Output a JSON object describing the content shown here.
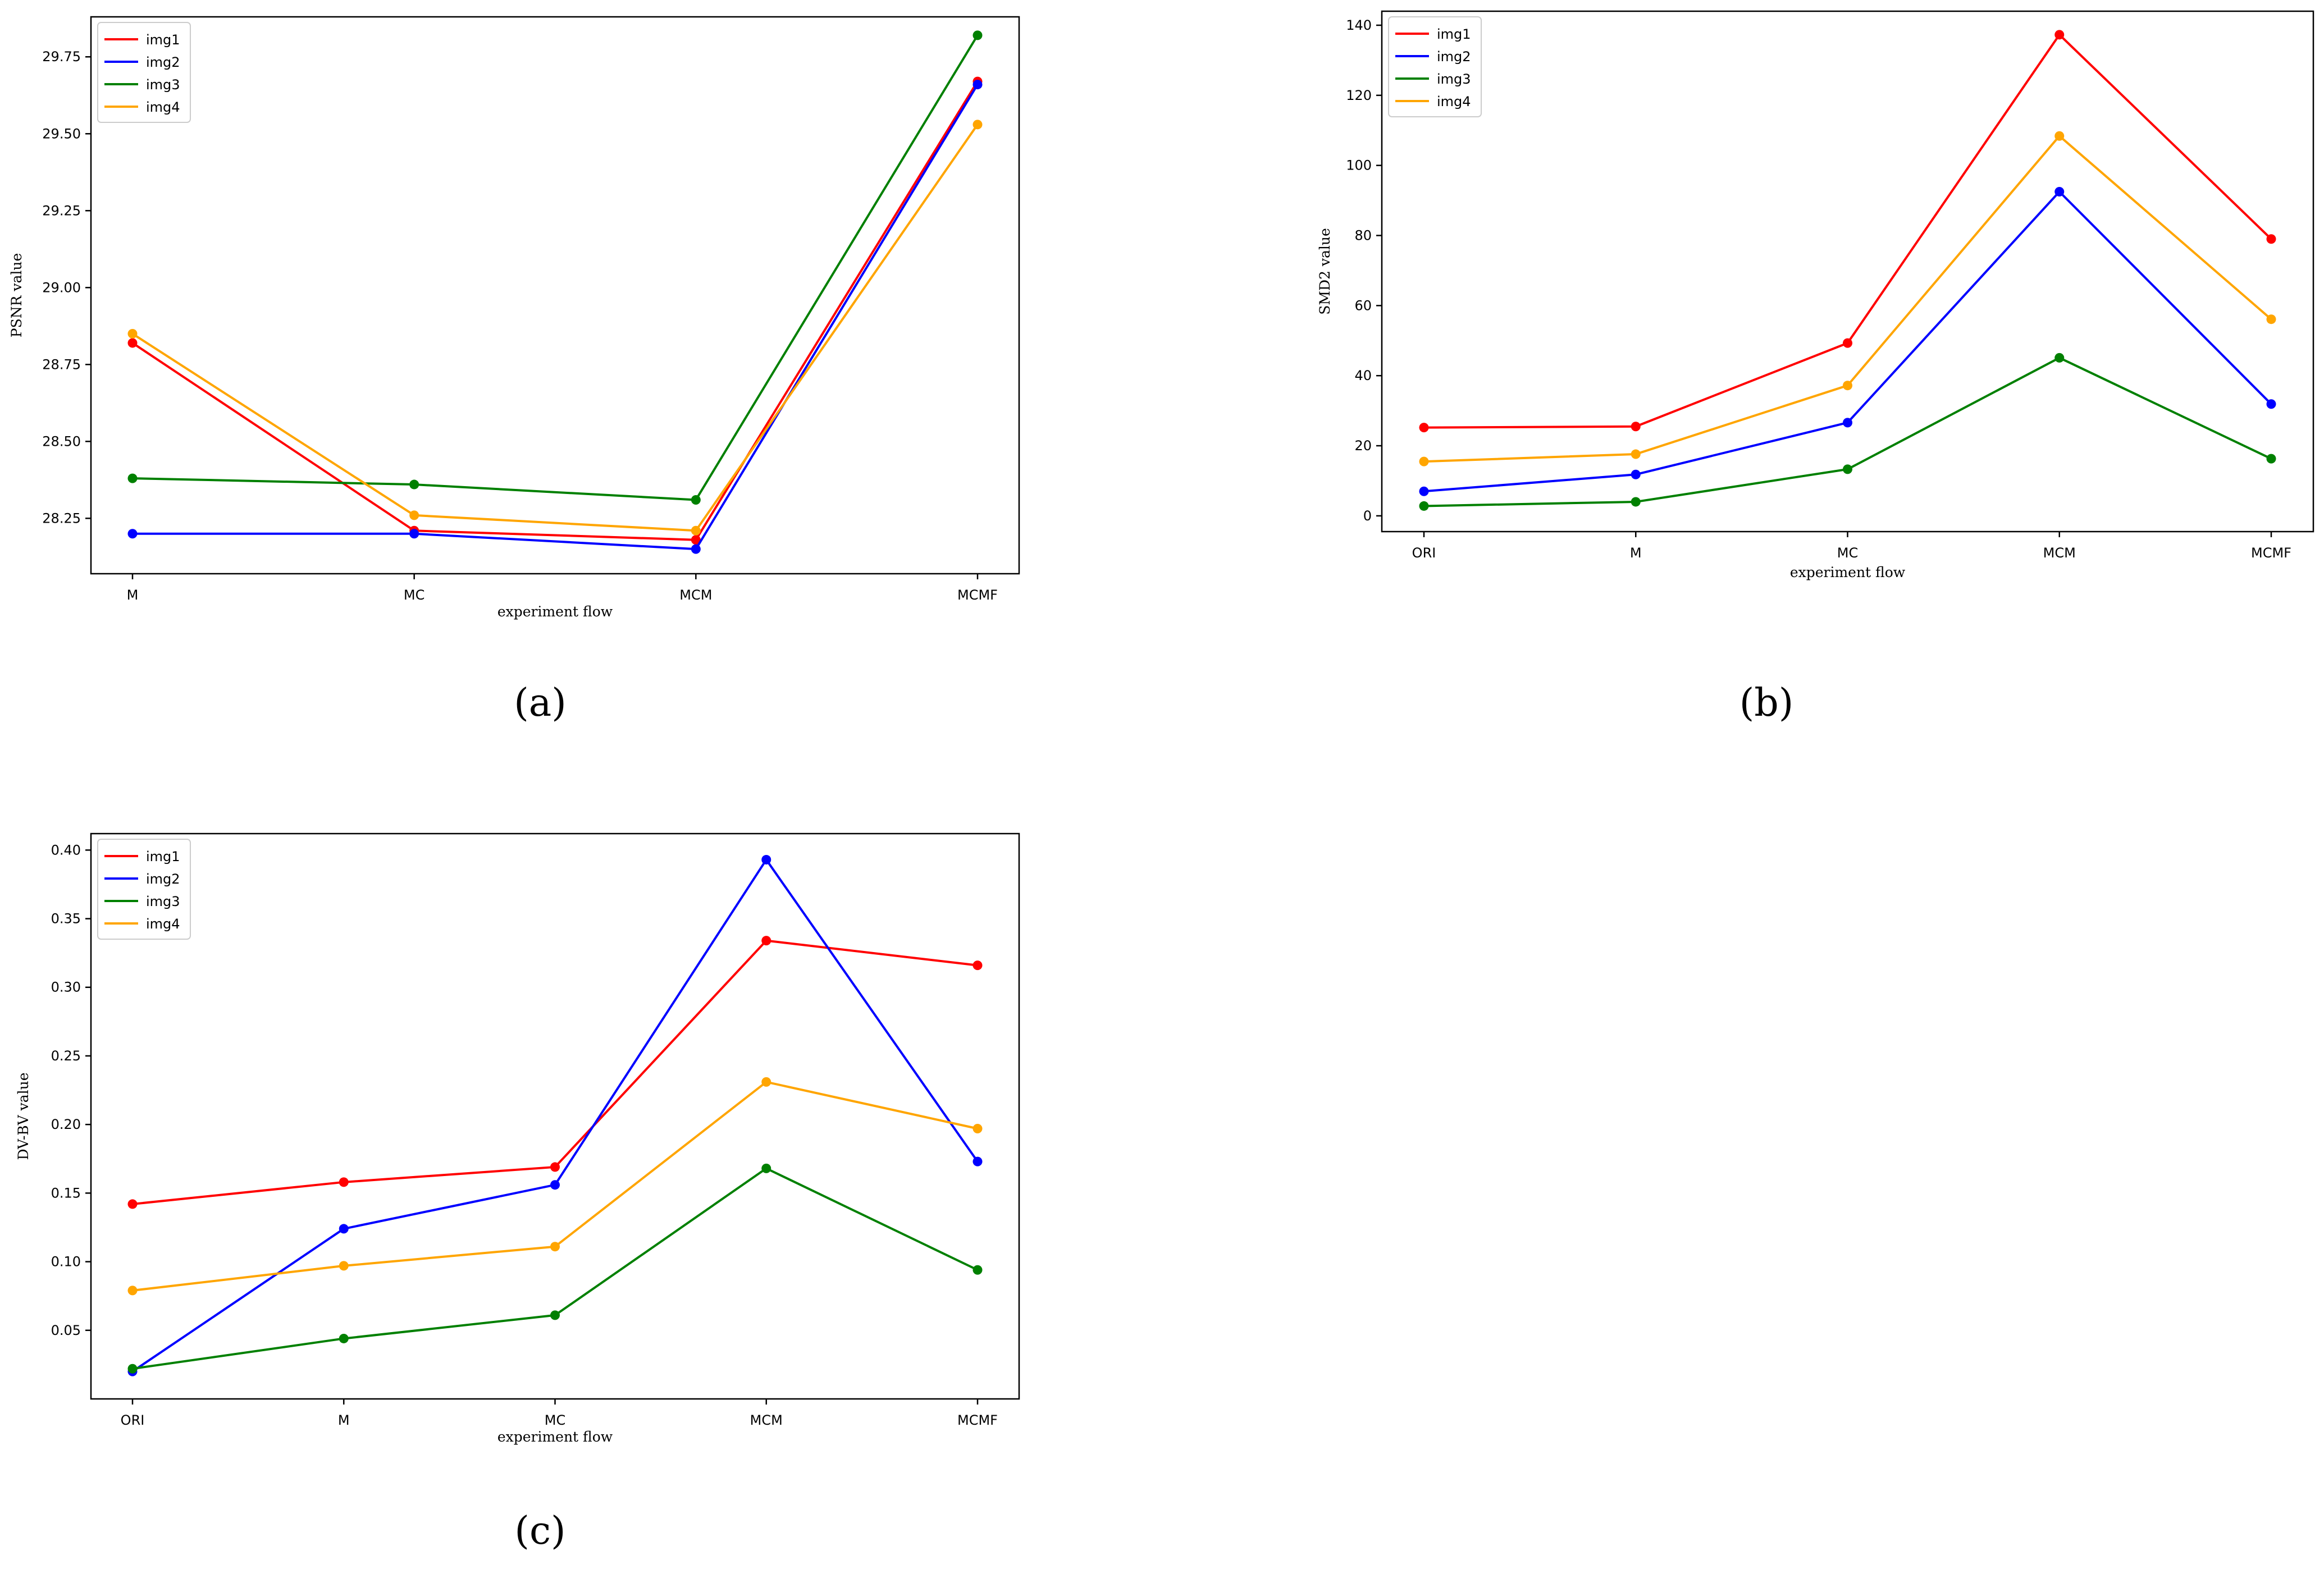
{
  "colors": {
    "img1": "#ff0000",
    "img2": "#0000ff",
    "img3": "#008000",
    "img4": "#ffa500"
  },
  "chart_data": [
    {
      "type": "line",
      "panel_label": "(a)",
      "xlabel": "experiment flow",
      "ylabel": "PSNR value",
      "categories": [
        "M",
        "MC",
        "MCM",
        "MCMF"
      ],
      "ylim": [
        28.07,
        29.88
      ],
      "yticks": [
        28.25,
        28.5,
        28.75,
        29.0,
        29.25,
        29.5,
        29.75
      ],
      "ytick_labels": [
        "28.25",
        "28.50",
        "28.75",
        "29.00",
        "29.25",
        "29.50",
        "29.75"
      ],
      "legend_position": "top-left",
      "series": [
        {
          "name": "img1",
          "values": [
            28.82,
            28.21,
            28.18,
            29.67
          ]
        },
        {
          "name": "img2",
          "values": [
            28.2,
            28.2,
            28.15,
            29.66
          ]
        },
        {
          "name": "img3",
          "values": [
            28.38,
            28.36,
            28.31,
            29.82
          ]
        },
        {
          "name": "img4",
          "values": [
            28.85,
            28.26,
            28.21,
            29.53
          ]
        }
      ]
    },
    {
      "type": "line",
      "panel_label": "(b)",
      "xlabel": "experiment flow",
      "ylabel": "SMD2 value",
      "categories": [
        "ORI",
        "M",
        "MC",
        "MCM",
        "MCMF"
      ],
      "ylim": [
        -4.5,
        144
      ],
      "yticks": [
        0,
        20,
        40,
        60,
        80,
        100,
        120,
        140
      ],
      "ytick_labels": [
        "0",
        "20",
        "40",
        "60",
        "80",
        "100",
        "120",
        "140"
      ],
      "legend_position": "top-left",
      "series": [
        {
          "name": "img1",
          "values": [
            25.2,
            25.5,
            49.3,
            137.3,
            79.0
          ]
        },
        {
          "name": "img2",
          "values": [
            7.0,
            11.8,
            26.6,
            92.5,
            31.9
          ]
        },
        {
          "name": "img3",
          "values": [
            2.8,
            4.0,
            13.3,
            45.1,
            16.3
          ]
        },
        {
          "name": "img4",
          "values": [
            15.5,
            17.6,
            37.2,
            108.4,
            56.1
          ]
        }
      ]
    },
    {
      "type": "line",
      "panel_label": "(c)",
      "xlabel": "experiment flow",
      "ylabel": "DV-BV value",
      "categories": [
        "ORI",
        "M",
        "MC",
        "MCM",
        "MCMF"
      ],
      "ylim": [
        0.0,
        0.412
      ],
      "yticks": [
        0.05,
        0.1,
        0.15,
        0.2,
        0.25,
        0.3,
        0.35,
        0.4
      ],
      "ytick_labels": [
        "0.05",
        "0.10",
        "0.15",
        "0.20",
        "0.25",
        "0.30",
        "0.35",
        "0.40"
      ],
      "legend_position": "top-left",
      "series": [
        {
          "name": "img1",
          "values": [
            0.142,
            0.158,
            0.169,
            0.334,
            0.316
          ]
        },
        {
          "name": "img2",
          "values": [
            0.02,
            0.124,
            0.156,
            0.393,
            0.173
          ]
        },
        {
          "name": "img3",
          "values": [
            0.022,
            0.044,
            0.061,
            0.168,
            0.094
          ]
        },
        {
          "name": "img4",
          "values": [
            0.079,
            0.097,
            0.111,
            0.231,
            0.197
          ]
        }
      ]
    }
  ]
}
